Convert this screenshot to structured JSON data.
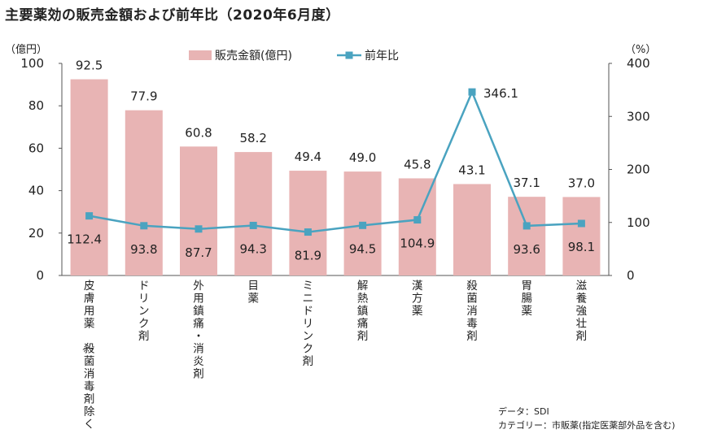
{
  "title": "主要薬効の販売金額および前年比（2020年6月度）",
  "footnotes": {
    "source": "データ：SDI",
    "category": "カテゴリー：市販薬(指定医薬部外品を含む)"
  },
  "chart_data": {
    "type": "bar",
    "categories": [
      "皮膚用薬（殺菌消毒剤除く）",
      "ドリンク剤",
      "外用鎮痛・消炎剤",
      "目薬",
      "ミニドリンク剤",
      "解熱鎮痛剤",
      "漢方薬",
      "殺菌消毒剤",
      "胃腸薬",
      "滋養強壮剤"
    ],
    "series": [
      {
        "name": "販売金額(億円)",
        "type": "bar",
        "axis": "left",
        "color": "#e8b4b4",
        "values": [
          92.5,
          77.9,
          60.8,
          58.2,
          49.4,
          49.0,
          45.8,
          43.1,
          37.1,
          37.0
        ]
      },
      {
        "name": "前年比",
        "type": "line",
        "axis": "right",
        "color": "#4aa3c0",
        "values": [
          112.4,
          93.8,
          87.7,
          94.3,
          81.9,
          94.5,
          104.9,
          346.1,
          93.6,
          98.1
        ]
      }
    ],
    "y_left": {
      "unit": "（億円）",
      "ylim": [
        0,
        100
      ],
      "ticks": [
        "0",
        "20",
        "40",
        "60",
        "80",
        "100"
      ]
    },
    "y_right": {
      "unit": "（%）",
      "ylim": [
        0,
        400
      ],
      "ticks": [
        "0",
        "100",
        "200",
        "300",
        "400"
      ]
    },
    "legend": {
      "placement": "top-center"
    },
    "grid": false
  }
}
